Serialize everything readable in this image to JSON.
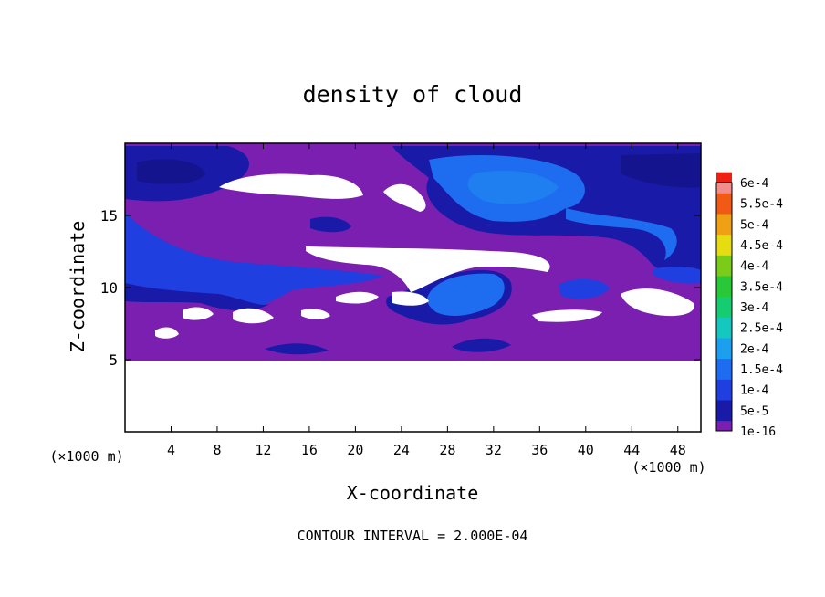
{
  "chart_data": {
    "type": "heatmap",
    "title": "density of cloud",
    "xlabel": "X-coordinate",
    "ylabel": "Z-coordinate",
    "x_unit": "(×1000 m)",
    "z_unit": "(×1000 m)",
    "xlim": [
      0,
      50
    ],
    "ylim": [
      0,
      20
    ],
    "x_ticks": [
      4,
      8,
      12,
      16,
      20,
      24,
      28,
      32,
      36,
      40,
      44,
      48
    ],
    "y_ticks": [
      5,
      10,
      15
    ],
    "footer": "CONTOUR INTERVAL = 2.000E-04",
    "colorbar": {
      "levels": [
        "1e-16",
        "5e-5",
        "1e-4",
        "1.5e-4",
        "2e-4",
        "2.5e-4",
        "3e-4",
        "3.5e-4",
        "4e-4",
        "4.5e-4",
        "5e-4",
        "5.5e-4",
        "6e-4"
      ],
      "colors": [
        "#7a1fb0",
        "#1a1aa8",
        "#1f3fe0",
        "#1e6cf0",
        "#1aa0ee",
        "#14c8c0",
        "#16cc70",
        "#28c838",
        "#7acc18",
        "#e6dc12",
        "#f0a014",
        "#f05a14",
        "#f02010",
        "#f58c8c"
      ]
    },
    "regions": [
      {
        "label": "background cloud",
        "level": "1e-16",
        "x_range": [
          0,
          50
        ],
        "z_range": [
          5,
          19.8
        ]
      },
      {
        "label": "no cloud",
        "x_range": [
          0,
          50
        ],
        "z_range": [
          0,
          5
        ]
      },
      {
        "label": "upper-left band",
        "level": "5e-5",
        "x_center": 4,
        "z_center": 17.8
      },
      {
        "label": "left band",
        "level": "1e-4",
        "x_center": 6,
        "z_center": 11.8
      },
      {
        "label": "upper-right plume",
        "level": "1e-4",
        "x_center": 38,
        "z_center": 16.5
      },
      {
        "label": "central core",
        "level": "1e-4",
        "x_center": 29.5,
        "z_center": 9.5
      },
      {
        "label": "right blob",
        "level": "1e-4",
        "x_center": 40,
        "z_center": 10
      }
    ]
  }
}
